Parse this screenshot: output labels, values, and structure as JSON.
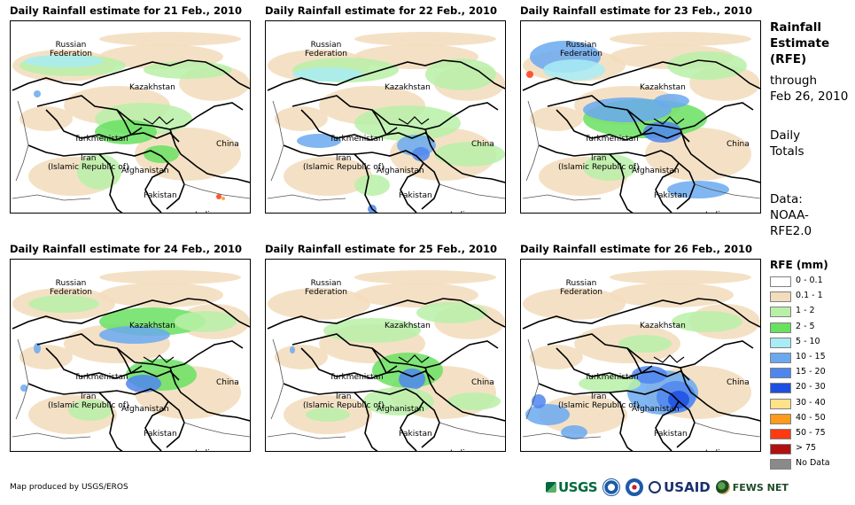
{
  "panels": [
    {
      "title": "Daily Rainfall estimate for 21 Feb., 2010",
      "pattern": "a"
    },
    {
      "title": "Daily Rainfall estimate for 22 Feb., 2010",
      "pattern": "b"
    },
    {
      "title": "Daily Rainfall estimate for 23 Feb., 2010",
      "pattern": "c"
    },
    {
      "title": "Daily Rainfall estimate for 24 Feb., 2010",
      "pattern": "d"
    },
    {
      "title": "Daily Rainfall estimate for 25 Feb., 2010",
      "pattern": "e"
    },
    {
      "title": "Daily Rainfall estimate for 26 Feb., 2010",
      "pattern": "f"
    }
  ],
  "map_labels": {
    "russia": "Russian\nFederation",
    "kazakhstan": "Kazakhstan",
    "turkmenistan": "Turkmenistan",
    "iran": "Iran\n(Islamic Republic of)",
    "afghanistan": "Afghanistan",
    "pakistan": "Pakistan",
    "china": "China",
    "india": "India"
  },
  "sidebar": {
    "title_line1": "Rainfall",
    "title_line2": "Estimate",
    "title_line3": "(RFE)",
    "through_line1": "through",
    "through_line2": "Feb 26, 2010",
    "daily_line1": "Daily",
    "daily_line2": "Totals",
    "data_line1": "Data:",
    "data_line2": "NOAA-",
    "data_line3": "RFE2.0"
  },
  "legend": {
    "title": "RFE (mm)",
    "items": [
      {
        "label": "0 - 0.1",
        "color": "#ffffff"
      },
      {
        "label": "0.1 - 1",
        "color": "#f2dcbb"
      },
      {
        "label": "1 - 2",
        "color": "#b9f0a8"
      },
      {
        "label": "2 - 5",
        "color": "#68e060"
      },
      {
        "label": "5 - 10",
        "color": "#a8ecf5"
      },
      {
        "label": "10 - 15",
        "color": "#6aa9f0"
      },
      {
        "label": "15 - 20",
        "color": "#4f86ee"
      },
      {
        "label": "20 - 30",
        "color": "#1f4fe0"
      },
      {
        "label": "30 - 40",
        "color": "#ffe28a"
      },
      {
        "label": "40 - 50",
        "color": "#ff9a1a"
      },
      {
        "label": "50 - 75",
        "color": "#ff3a10"
      },
      {
        "label": "> 75",
        "color": "#b01010"
      },
      {
        "label": "No Data",
        "color": "#8a8a8a"
      }
    ]
  },
  "credit": "Map produced by USGS/EROS",
  "logos": {
    "usgs": "USGS",
    "usaid": "USAID",
    "fews": "FEWS NET",
    "noaa_icon": "noaa-logo-icon",
    "nws_icon": "nws-logo-icon"
  }
}
